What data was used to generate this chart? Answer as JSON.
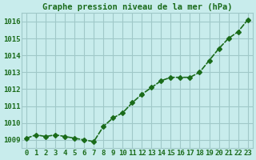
{
  "hours": [
    0,
    1,
    2,
    3,
    4,
    5,
    6,
    7,
    8,
    9,
    10,
    11,
    12,
    13,
    14,
    15,
    16,
    17,
    18,
    19,
    20,
    21,
    22,
    23
  ],
  "pressure": [
    1009.1,
    1009.3,
    1009.2,
    1009.3,
    1009.2,
    1009.1,
    1009.0,
    1008.9,
    1009.8,
    1010.3,
    1010.6,
    1011.2,
    1011.7,
    1012.1,
    1012.5,
    1012.7,
    1012.7,
    1012.7,
    1013.0,
    1013.7,
    1014.4,
    1015.0,
    1015.4,
    1016.1
  ],
  "line_color": "#1a6b1a",
  "marker_color": "#1a6b1a",
  "background_color": "#c8ecec",
  "grid_color": "#a0c8c8",
  "title": "Graphe pression niveau de la mer (hPa)",
  "xlabel": "",
  "ylabel": "",
  "ylim": [
    1008.5,
    1016.5
  ],
  "yticks": [
    1009,
    1010,
    1011,
    1012,
    1013,
    1014,
    1015,
    1016
  ],
  "xticks": [
    0,
    1,
    2,
    3,
    4,
    5,
    6,
    7,
    8,
    9,
    10,
    11,
    12,
    13,
    14,
    15,
    16,
    17,
    18,
    19,
    20,
    21,
    22,
    23
  ],
  "tick_label_color": "#1a6b1a",
  "title_color": "#1a6b1a",
  "title_fontsize": 7.5,
  "tick_fontsize": 6.5,
  "line_width": 1.2,
  "marker_size": 3
}
